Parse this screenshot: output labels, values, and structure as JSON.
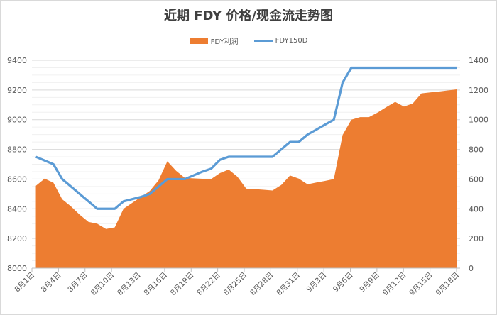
{
  "chart_data": {
    "type": "area+line",
    "title": "近期 FDY 价格/现金流走势图",
    "legend_position": "top",
    "grid": true,
    "colors": {
      "profit": "#ED7D31",
      "price": "#5B9BD5"
    },
    "left_axis": {
      "ylim": [
        8000,
        9400
      ],
      "ticks": [
        "8000",
        "8200",
        "8400",
        "8600",
        "8800",
        "9000",
        "9200",
        "9400"
      ]
    },
    "right_axis": {
      "ylim": [
        0,
        1400
      ],
      "ticks": [
        "0",
        "200",
        "400",
        "600",
        "800",
        "1000",
        "1200",
        "1400"
      ]
    },
    "x_tick_labels": [
      "8月1日",
      "8月4日",
      "8月7日",
      "8月10日",
      "8月13日",
      "8月16日",
      "8月19日",
      "8月22日",
      "8月25日",
      "8月28日",
      "8月31日",
      "9月3日",
      "9月6日",
      "9月9日",
      "9月12日",
      "9月15日",
      "9月18日"
    ],
    "series": [
      {
        "name": "FDY利润",
        "type": "area",
        "axis": "right",
        "values": [
          555,
          603,
          576,
          464,
          416,
          360,
          312,
          299,
          264,
          275,
          400,
          440,
          480,
          520,
          592,
          720,
          656,
          608,
          605,
          602,
          600,
          640,
          664,
          616,
          536,
          532,
          528,
          523,
          560,
          624,
          603,
          565,
          577,
          588,
          600,
          897,
          1000,
          1017,
          1017,
          1048,
          1085,
          1120,
          1088,
          1109,
          1177,
          1184,
          1190,
          1197,
          1204
        ]
      },
      {
        "name": "FDY150D",
        "type": "line",
        "axis": "left",
        "values": [
          8750,
          8725,
          8700,
          8600,
          8550,
          8500,
          8450,
          8400,
          8400,
          8400,
          8450,
          8465,
          8480,
          8500,
          8550,
          8600,
          8600,
          8600,
          8625,
          8650,
          8670,
          8730,
          8750,
          8750,
          8750,
          8750,
          8750,
          8750,
          8800,
          8850,
          8850,
          8900,
          8933,
          8967,
          9000,
          9250,
          9350,
          9350,
          9350,
          9350,
          9350,
          9350,
          9350,
          9350,
          9350,
          9350,
          9350,
          9350,
          9350
        ]
      }
    ]
  }
}
